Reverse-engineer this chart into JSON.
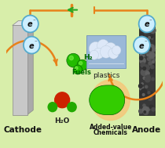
{
  "bg_color": "#d8eeaa",
  "wire_color": "#E8821A",
  "electron_border": "#55aacc",
  "electron_bg": "#cceeff",
  "green_arrow": "#22aa22",
  "cathode_face": "#c8c8c8",
  "cathode_top": "#e0e0e0",
  "cathode_side": "#aaaaaa",
  "anode_face": "#383838",
  "anode_dark": "#282828",
  "h2_green": "#22bb00",
  "h2o_red": "#cc2200",
  "h2o_green": "#22aa00",
  "drop_green": "#33cc00",
  "drop_halo": "#f5c87a",
  "plastics_bg": "#9ab8d8",
  "plastics_cloud": "#dde8f8",
  "text_dark": "#111111",
  "text_green": "#006600",
  "cathode_label": "Cathode",
  "anode_label": "Anode",
  "plastics_label": "plastics",
  "h2_label": "H₂",
  "fuels_label": "Fuels",
  "h2o_label": "H₂O",
  "added_label": "Added-value",
  "chem_label": "Chemicals"
}
